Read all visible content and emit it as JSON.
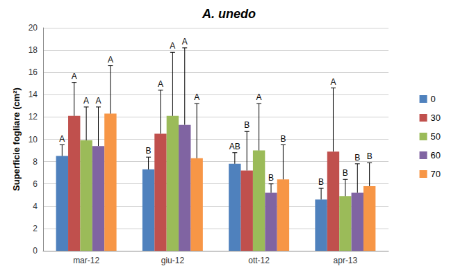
{
  "chart_data": {
    "type": "bar",
    "title": "A. unedo",
    "y_label": "Superficie fogliare (cm²)",
    "categories": [
      "mar-12",
      "giu-12",
      "ott-12",
      "apr-13"
    ],
    "series": [
      {
        "name": "0",
        "color": "#4f81bd",
        "values": [
          8.5,
          7.3,
          7.8,
          4.6
        ],
        "errors": [
          1.0,
          1.1,
          1.0,
          1.0
        ],
        "annotations": [
          "A",
          "B",
          "AB",
          "B"
        ]
      },
      {
        "name": "30",
        "color": "#c0504d",
        "values": [
          12.1,
          10.5,
          7.2,
          8.9
        ],
        "errors": [
          3.0,
          3.9,
          3.5,
          5.7
        ],
        "annotations": [
          "A",
          "A",
          "B",
          "A"
        ]
      },
      {
        "name": "50",
        "color": "#9bbb59",
        "values": [
          9.9,
          12.1,
          9.0,
          4.9
        ],
        "errors": [
          3.0,
          5.7,
          4.2,
          1.5
        ],
        "annotations": [
          "A",
          "A",
          "A",
          "B"
        ]
      },
      {
        "name": "60",
        "color": "#8064a2",
        "values": [
          9.4,
          11.3,
          5.2,
          5.2
        ],
        "errors": [
          3.5,
          6.9,
          0.8,
          2.6
        ],
        "annotations": [
          "A",
          "A",
          "B",
          "B"
        ]
      },
      {
        "name": "70",
        "color": "#f79646",
        "values": [
          12.3,
          8.3,
          6.4,
          5.8
        ],
        "errors": [
          4.3,
          4.9,
          3.1,
          2.1
        ],
        "annotations": [
          "A",
          "A",
          "B",
          "B"
        ]
      }
    ],
    "ylim": [
      0,
      20
    ],
    "yticks": [
      0,
      2,
      4,
      6,
      8,
      10,
      12,
      14,
      16,
      18,
      20
    ],
    "grid": true,
    "legend": "right"
  }
}
